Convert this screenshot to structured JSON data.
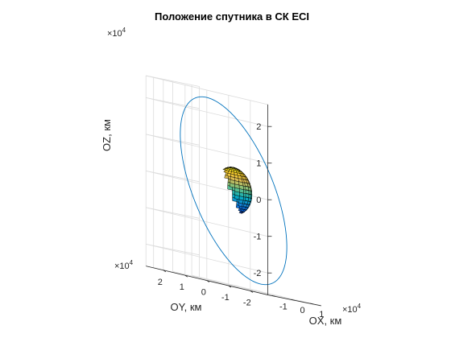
{
  "chart_data": {
    "type": "line3d",
    "title": "Положение спутника в СК ECI",
    "xlabel": "OX, км",
    "ylabel": "OY, км",
    "zlabel": "OZ, км",
    "x_ticks": [
      "-1",
      "0",
      "1"
    ],
    "y_ticks": [
      "-2",
      "-1",
      "0",
      "1",
      "2"
    ],
    "z_ticks": [
      "-2",
      "-1",
      "0",
      "1",
      "2"
    ],
    "x_tick_values": [
      -10000,
      0,
      10000
    ],
    "y_tick_values": [
      -20000,
      -10000,
      0,
      10000,
      20000
    ],
    "z_tick_values": [
      -20000,
      -10000,
      0,
      10000,
      20000
    ],
    "x_exponent": "×10",
    "x_exponent_power": "4",
    "y_exponent": "×10",
    "y_exponent_power": "4",
    "z_exponent": "×10",
    "z_exponent_power": "4",
    "xlim": [
      -14000,
      14000
    ],
    "ylim": [
      -28000,
      28000
    ],
    "zlim": [
      -26000,
      26000
    ],
    "grid": true,
    "series": [
      {
        "kind": "orbit",
        "color": "#0072bd",
        "semi_major_axis_km": 26560,
        "inclination_deg": 63.4,
        "raan_deg": 5
      },
      {
        "kind": "earth",
        "radius_km": 6371,
        "colormap": "parula"
      }
    ]
  }
}
